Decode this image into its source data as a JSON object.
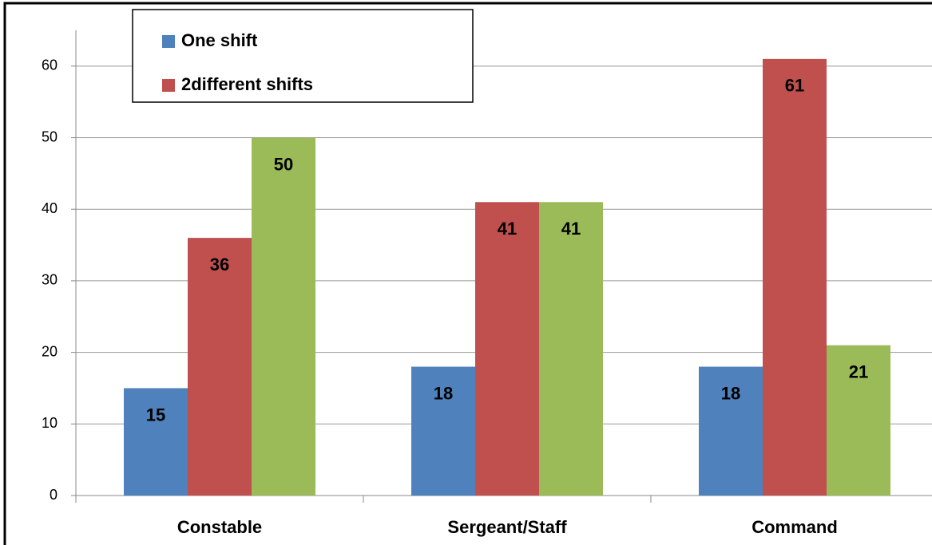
{
  "chart_data": {
    "type": "bar",
    "categories": [
      "Constable",
      "Sergeant/Staff",
      "Command"
    ],
    "series": [
      {
        "name": "One shift",
        "color": "#4f81bd",
        "values": [
          15,
          18,
          18
        ]
      },
      {
        "name": "2different shifts",
        "color": "#c0504d",
        "values": [
          36,
          41,
          61
        ]
      },
      {
        "color": "#9bbb59",
        "values": [
          50,
          41,
          21
        ]
      }
    ],
    "ylim": [
      0,
      65
    ],
    "yticks": [
      0,
      10,
      20,
      30,
      40,
      50,
      60
    ],
    "grid": true,
    "legend": "top-left"
  }
}
